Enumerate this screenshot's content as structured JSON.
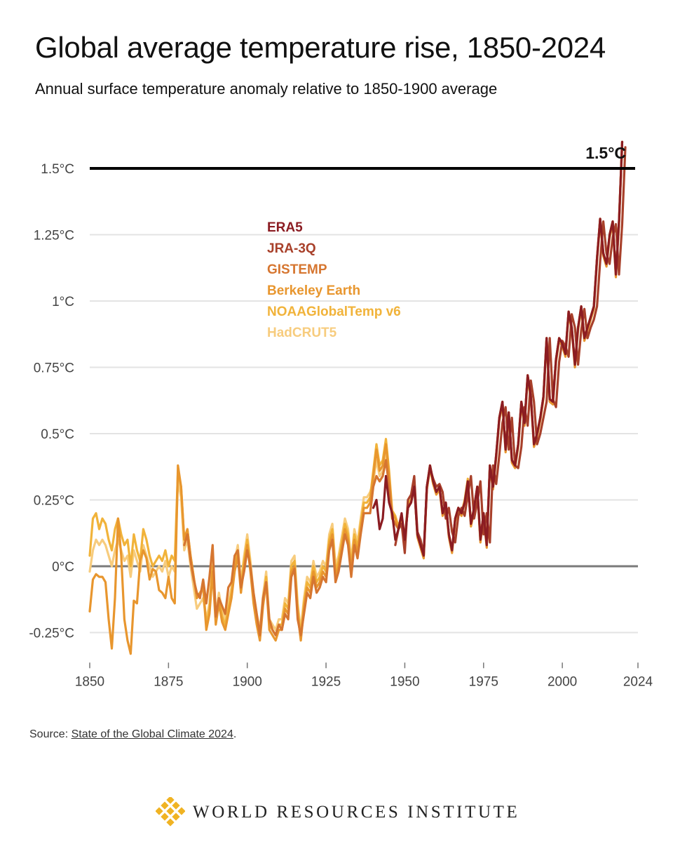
{
  "header": {
    "title": "Global average temperature rise, 1850-2024",
    "subtitle": "Annual surface temperature anomaly relative to 1850-1900 average"
  },
  "chart_data": {
    "type": "line",
    "title": "Global average temperature rise, 1850-2024",
    "subtitle": "Annual surface temperature anomaly relative to 1850-1900 average",
    "xlabel": "",
    "ylabel": "",
    "xlim": [
      1850,
      2024
    ],
    "ylim": [
      -0.35,
      1.65
    ],
    "x_ticks": [
      1850,
      1875,
      1900,
      1925,
      1950,
      1975,
      2000,
      2024
    ],
    "x_tick_labels": [
      "1850",
      "1875",
      "1900",
      "1925",
      "1950",
      "1975",
      "2000",
      "2024"
    ],
    "y_ticks": [
      -0.25,
      0,
      0.25,
      0.5,
      0.75,
      1,
      1.25,
      1.5
    ],
    "y_tick_labels": [
      "-0.25°C",
      "0°C",
      "0.25°C",
      "0.5°C",
      "0.75°C",
      "1°C",
      "1.25°C",
      "1.5°C"
    ],
    "grid": true,
    "legend_position": "upper-left, inside plot",
    "reference_line": {
      "value": 1.5,
      "label": "1.5°C"
    },
    "series": [
      {
        "name": "ERA5",
        "color": "#8b1c22",
        "start_year": 1940,
        "values": [
          0.22,
          0.25,
          0.14,
          0.18,
          0.34,
          0.24,
          0.2,
          0.1,
          0.14,
          0.2,
          0.1,
          0.22,
          0.24,
          0.3,
          0.12,
          0.08,
          0.04,
          0.3,
          0.38,
          0.32,
          0.28,
          0.3,
          0.2,
          0.24,
          0.12,
          0.06,
          0.18,
          0.22,
          0.2,
          0.24,
          0.32,
          0.16,
          0.22,
          0.3,
          0.1,
          0.2,
          0.08,
          0.38,
          0.3,
          0.42,
          0.56,
          0.62,
          0.44,
          0.58,
          0.4,
          0.38,
          0.46,
          0.62,
          0.54,
          0.72,
          0.64,
          0.46,
          0.5,
          0.56,
          0.64,
          0.86,
          0.63,
          0.62,
          0.78,
          0.86,
          0.84,
          0.8,
          0.96,
          0.9,
          0.76,
          0.9,
          0.98,
          0.86,
          0.9,
          0.94,
          0.98,
          1.16,
          1.31,
          1.18,
          1.14,
          1.25,
          1.3,
          1.1,
          1.3,
          1.6
        ]
      },
      {
        "name": "JRA-3Q",
        "color": "#a8402a",
        "start_year": 1947,
        "values": [
          0.08,
          0.14,
          0.16,
          0.05,
          0.25,
          0.27,
          0.34,
          0.13,
          0.1,
          0.05,
          0.3,
          0.37,
          0.33,
          0.3,
          0.31,
          0.28,
          0.18,
          0.22,
          0.13,
          0.09,
          0.19,
          0.22,
          0.19,
          0.27,
          0.34,
          0.18,
          0.24,
          0.32,
          0.12,
          0.2,
          0.09,
          0.38,
          0.31,
          0.42,
          0.54,
          0.6,
          0.44,
          0.56,
          0.38,
          0.37,
          0.45,
          0.6,
          0.53,
          0.7,
          0.62,
          0.46,
          0.5,
          0.56,
          0.62,
          0.86,
          0.63,
          0.6,
          0.77,
          0.85,
          0.83,
          0.79,
          0.95,
          0.9,
          0.76,
          0.89,
          0.97,
          0.86,
          0.9,
          0.93,
          0.98,
          1.15,
          1.3,
          1.18,
          1.14,
          1.24,
          1.29,
          1.1,
          1.29,
          1.58
        ]
      },
      {
        "name": "GISTEMP",
        "color": "#d67630",
        "start_year": 1880,
        "values": [
          0.08,
          0.12,
          0.02,
          -0.05,
          -0.1,
          -0.12,
          -0.05,
          -0.14,
          -0.04,
          0.08,
          -0.19,
          -0.12,
          -0.15,
          -0.18,
          -0.08,
          -0.06,
          0.04,
          0.06,
          -0.08,
          -0.02,
          0.06,
          0.0,
          -0.1,
          -0.18,
          -0.26,
          -0.12,
          -0.06,
          -0.2,
          -0.24,
          -0.26,
          -0.22,
          -0.24,
          -0.18,
          -0.2,
          -0.04,
          -0.01,
          -0.2,
          -0.26,
          -0.18,
          -0.1,
          -0.12,
          -0.04,
          -0.1,
          -0.08,
          -0.04,
          -0.06,
          0.06,
          0.1,
          -0.06,
          -0.02,
          0.05,
          0.12,
          0.08,
          -0.04,
          0.08,
          0.03,
          0.12,
          0.2,
          0.2,
          0.2,
          0.3,
          0.34,
          0.32,
          0.34,
          0.4,
          0.3,
          0.18,
          0.16,
          0.14,
          0.16,
          0.1,
          0.22,
          0.24,
          0.3,
          0.12,
          0.08,
          0.04,
          0.3,
          0.38,
          0.32,
          0.28,
          0.3,
          0.2,
          0.24,
          0.12,
          0.06,
          0.18,
          0.22,
          0.2,
          0.24,
          0.32,
          0.16,
          0.22,
          0.3,
          0.1,
          0.2,
          0.08,
          0.38,
          0.3,
          0.42,
          0.56,
          0.62,
          0.44,
          0.58,
          0.4,
          0.38,
          0.46,
          0.62,
          0.54,
          0.72,
          0.64,
          0.46,
          0.5,
          0.56,
          0.64,
          0.86,
          0.63,
          0.62,
          0.78,
          0.86,
          0.84,
          0.8,
          0.96,
          0.9,
          0.76,
          0.9,
          0.98,
          0.86,
          0.9,
          0.94,
          0.98,
          1.16,
          1.31,
          1.18,
          1.14,
          1.25,
          1.3,
          1.1,
          1.3,
          1.6
        ]
      },
      {
        "name": "Berkeley Earth",
        "color": "#e8962e",
        "start_year": 1850,
        "values": [
          -0.17,
          -0.05,
          -0.03,
          -0.04,
          -0.04,
          -0.06,
          -0.2,
          -0.31,
          -0.12,
          0.18,
          0.04,
          -0.2,
          -0.28,
          -0.33,
          -0.13,
          -0.14,
          0.02,
          0.06,
          0.03,
          -0.05,
          -0.01,
          -0.02,
          -0.09,
          -0.1,
          -0.12,
          -0.04,
          -0.12,
          -0.14,
          0.38,
          0.3,
          0.1,
          0.14,
          0.04,
          -0.04,
          -0.12,
          -0.1,
          -0.08,
          -0.24,
          -0.18,
          -0.02,
          -0.22,
          -0.14,
          -0.21,
          -0.24,
          -0.18,
          -0.12,
          -0.02,
          0.04,
          -0.1,
          0.0,
          0.08,
          -0.02,
          -0.14,
          -0.22,
          -0.28,
          -0.15,
          -0.06,
          -0.24,
          -0.26,
          -0.28,
          -0.24,
          -0.24,
          -0.16,
          -0.18,
          -0.02,
          0.0,
          -0.18,
          -0.28,
          -0.16,
          -0.08,
          -0.1,
          -0.02,
          -0.08,
          -0.06,
          -0.02,
          -0.04,
          0.08,
          0.12,
          -0.04,
          0.0,
          0.07,
          0.14,
          0.1,
          -0.02,
          0.1,
          0.05,
          0.14,
          0.22,
          0.22,
          0.24,
          0.34,
          0.44,
          0.36,
          0.38,
          0.46,
          0.34,
          0.2,
          0.18,
          0.14,
          0.18,
          0.09,
          0.23,
          0.24,
          0.31,
          0.11,
          0.07,
          0.03,
          0.29,
          0.37,
          0.31,
          0.27,
          0.29,
          0.19,
          0.23,
          0.11,
          0.05,
          0.17,
          0.21,
          0.19,
          0.24,
          0.32,
          0.15,
          0.21,
          0.29,
          0.09,
          0.19,
          0.07,
          0.37,
          0.29,
          0.41,
          0.55,
          0.61,
          0.43,
          0.57,
          0.39,
          0.37,
          0.45,
          0.61,
          0.53,
          0.71,
          0.63,
          0.45,
          0.49,
          0.55,
          0.63,
          0.85,
          0.62,
          0.61,
          0.77,
          0.85,
          0.83,
          0.79,
          0.95,
          0.89,
          0.75,
          0.89,
          0.97,
          0.85,
          0.89,
          0.93,
          0.97,
          1.15,
          1.3,
          1.17,
          1.13,
          1.24,
          1.29,
          1.09,
          1.29,
          1.59
        ]
      },
      {
        "name": "NOAAGlobalTemp v6",
        "color": "#f1b33a",
        "start_year": 1850,
        "values": [
          0.04,
          0.18,
          0.2,
          0.14,
          0.18,
          0.16,
          0.1,
          0.06,
          0.14,
          0.18,
          0.12,
          0.08,
          0.1,
          0.0,
          0.12,
          0.06,
          0.02,
          0.14,
          0.1,
          0.04,
          0.0,
          0.02,
          0.04,
          0.02,
          0.06,
          0.0,
          0.04,
          0.02,
          0.36,
          0.3,
          0.1,
          0.14,
          0.04,
          -0.04,
          -0.12,
          -0.1,
          -0.08,
          -0.22,
          -0.16,
          0.0,
          -0.2,
          -0.12,
          -0.19,
          -0.22,
          -0.16,
          -0.1,
          0.0,
          0.06,
          -0.08,
          0.02,
          0.1,
          0.0,
          -0.12,
          -0.2,
          -0.26,
          -0.13,
          -0.04,
          -0.22,
          -0.24,
          -0.26,
          -0.22,
          -0.22,
          -0.14,
          -0.16,
          0.0,
          0.02,
          -0.16,
          -0.26,
          -0.14,
          -0.06,
          -0.08,
          0.0,
          -0.06,
          -0.04,
          0.0,
          -0.02,
          0.1,
          0.14,
          -0.02,
          0.02,
          0.09,
          0.16,
          0.12,
          0.0,
          0.12,
          0.07,
          0.16,
          0.24,
          0.24,
          0.26,
          0.36,
          0.46,
          0.38,
          0.4,
          0.48,
          0.36,
          0.21,
          0.19,
          0.15,
          0.19,
          0.1,
          0.24,
          0.25,
          0.32,
          0.12,
          0.08,
          0.04,
          0.3,
          0.38,
          0.32,
          0.28,
          0.3,
          0.2,
          0.24,
          0.12,
          0.06,
          0.18,
          0.22,
          0.2,
          0.25,
          0.33,
          0.16,
          0.22,
          0.3,
          0.1,
          0.2,
          0.08,
          0.38,
          0.3,
          0.42,
          0.56,
          0.62,
          0.44,
          0.58,
          0.4,
          0.38,
          0.46,
          0.62,
          0.54,
          0.72,
          0.64,
          0.46,
          0.5,
          0.56,
          0.64,
          0.86,
          0.63,
          0.62,
          0.78,
          0.86,
          0.84,
          0.8,
          0.96,
          0.9,
          0.76,
          0.9,
          0.98,
          0.86,
          0.9,
          0.94,
          0.98,
          1.16,
          1.31,
          1.18,
          1.14,
          1.25,
          1.3,
          1.1,
          1.3,
          1.6
        ]
      },
      {
        "name": "HadCRUT5",
        "color": "#f7cc7e",
        "start_year": 1850,
        "values": [
          -0.02,
          0.06,
          0.1,
          0.08,
          0.1,
          0.08,
          0.04,
          0.0,
          0.06,
          0.1,
          0.06,
          0.02,
          0.04,
          -0.04,
          0.06,
          0.02,
          -0.02,
          0.08,
          0.04,
          0.0,
          -0.04,
          -0.02,
          0.0,
          -0.02,
          0.02,
          -0.04,
          0.0,
          -0.02,
          0.32,
          0.26,
          0.06,
          0.1,
          0.0,
          -0.08,
          -0.16,
          -0.14,
          -0.12,
          -0.2,
          -0.14,
          0.02,
          -0.18,
          -0.1,
          -0.17,
          -0.2,
          -0.14,
          -0.08,
          0.02,
          0.08,
          -0.06,
          0.04,
          0.12,
          0.02,
          -0.1,
          -0.18,
          -0.24,
          -0.11,
          -0.02,
          -0.2,
          -0.22,
          -0.24,
          -0.2,
          -0.2,
          -0.12,
          -0.14,
          0.02,
          0.04,
          -0.14,
          -0.24,
          -0.12,
          -0.04,
          -0.06,
          0.02,
          -0.04,
          -0.02,
          0.02,
          0.0,
          0.12,
          0.16,
          0.0,
          0.04,
          0.11,
          0.18,
          0.14,
          0.02,
          0.14,
          0.09,
          0.18,
          0.26,
          0.26,
          0.28,
          0.32,
          0.4,
          0.34,
          0.36,
          0.42,
          0.32,
          0.2,
          0.18,
          0.14,
          0.18,
          0.1,
          0.22,
          0.24,
          0.3,
          0.12,
          0.08,
          0.04,
          0.29,
          0.37,
          0.31,
          0.28,
          0.3,
          0.2,
          0.24,
          0.12,
          0.06,
          0.18,
          0.22,
          0.2,
          0.24,
          0.32,
          0.16,
          0.22,
          0.3,
          0.1,
          0.2,
          0.08,
          0.38,
          0.3,
          0.42,
          0.56,
          0.62,
          0.44,
          0.58,
          0.4,
          0.38,
          0.46,
          0.62,
          0.54,
          0.72,
          0.64,
          0.46,
          0.5,
          0.56,
          0.64,
          0.86,
          0.63,
          0.62,
          0.78,
          0.86,
          0.84,
          0.8,
          0.96,
          0.9,
          0.76,
          0.9,
          0.98,
          0.86,
          0.9,
          0.94,
          0.98,
          1.16,
          1.31,
          1.18,
          1.14,
          1.25,
          1.3,
          1.1,
          1.3,
          1.6
        ]
      }
    ]
  },
  "source": {
    "prefix": "Source: ",
    "link_text": "State of the Global Climate 2024",
    "suffix": "."
  },
  "footer": {
    "organization": "WORLD RESOURCES INSTITUTE",
    "logo_icon": "wri-logo-icon",
    "logo_color": "#f0b323"
  }
}
